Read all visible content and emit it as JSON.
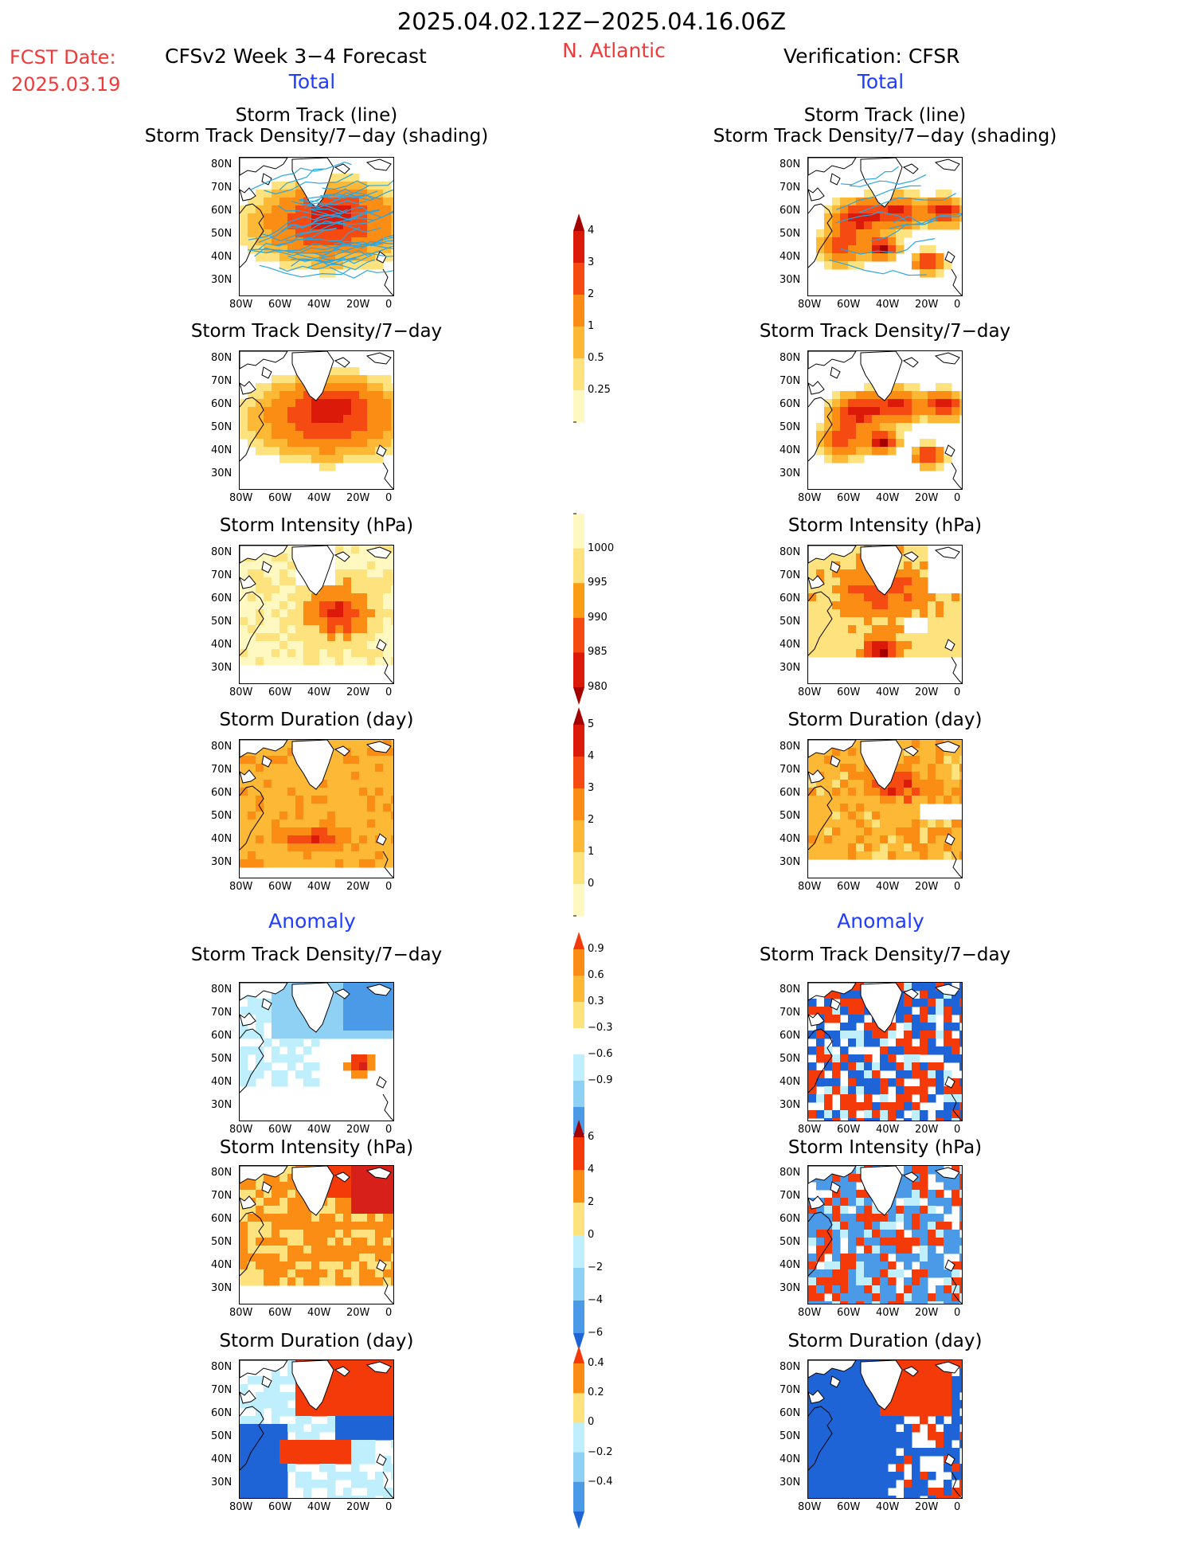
{
  "header": {
    "period": "2025.04.02.12Z−2025.04.16.06Z",
    "fcst_label": "FCST Date:",
    "fcst_date": "2025.03.19",
    "model_title": "CFSv2 Week 3−4 Forecast",
    "region": "N. Atlantic",
    "verification": "Verification: CFSR",
    "section_total": "Total",
    "section_anomaly": "Anomaly"
  },
  "panel_titles": {
    "track_line": "Storm Track (line)",
    "track_shading": "Storm Track Density/7−day (shading)",
    "density": "Storm Track Density/7−day",
    "intensity": "Storm Intensity (hPa)",
    "duration": "Storm Duration (day)"
  },
  "axes": {
    "lat_ticks": [
      "80N",
      "70N",
      "60N",
      "50N",
      "40N",
      "30N"
    ],
    "lon_ticks": [
      "80W",
      "60W",
      "40W",
      "20W",
      "0"
    ]
  },
  "colorbars": {
    "density_total": {
      "labels": [
        "4",
        "3",
        "2",
        "1",
        "0.5",
        "0.25"
      ],
      "colors": [
        "#a50000",
        "#dc1a0a",
        "#f54a12",
        "#fb8c14",
        "#fdb835",
        "#fde27d",
        "#fff8c0"
      ]
    },
    "intensity_total": {
      "labels": [
        "1000",
        "995",
        "990",
        "985",
        "980"
      ],
      "colors": [
        "#fff8c0",
        "#fde27d",
        "#fb9d14",
        "#f54a12",
        "#dc1a0a",
        "#a50000"
      ]
    },
    "duration_total": {
      "labels": [
        "5",
        "4",
        "3",
        "2",
        "1",
        "0"
      ],
      "colors": [
        "#a50000",
        "#dc1a0a",
        "#f54a12",
        "#fb8c14",
        "#fdb835",
        "#fde27d",
        "#fff8c0"
      ]
    },
    "density_anom": {
      "labels": [
        "0.9",
        "0.6",
        "0.3",
        "−0.3",
        "−0.6",
        "−0.9"
      ],
      "colors": [
        "#f53a0a",
        "#fb8c14",
        "#fdb835",
        "#fde27d",
        "#ffffff",
        "#bfeffd",
        "#8fd0f5",
        "#4b9ae8",
        "#1e64d6"
      ]
    },
    "intensity_anom": {
      "labels": [
        "6",
        "4",
        "2",
        "0",
        "−2",
        "−4",
        "−6"
      ],
      "colors": [
        "#a50000",
        "#f53a0a",
        "#fb8c14",
        "#fde27d",
        "#bfeffd",
        "#8fd0f5",
        "#4b9ae8",
        "#1e64d6"
      ]
    },
    "duration_anom": {
      "labels": [
        "0.4",
        "0.2",
        "0",
        "−0.2",
        "−0.4"
      ],
      "colors": [
        "#f53a0a",
        "#fb8c14",
        "#fde27d",
        "#bfeffd",
        "#8fd0f5",
        "#4b9ae8",
        "#1e64d6"
      ]
    }
  },
  "palette": {
    "warm": [
      "#fff8c0",
      "#fde27d",
      "#fdb835",
      "#fb8c14",
      "#f54a12",
      "#dc1a0a",
      "#a50000"
    ],
    "cool": [
      "#bfeffd",
      "#8fd0f5",
      "#4b9ae8",
      "#1e64d6"
    ],
    "track_line": "#2aa6e0"
  }
}
